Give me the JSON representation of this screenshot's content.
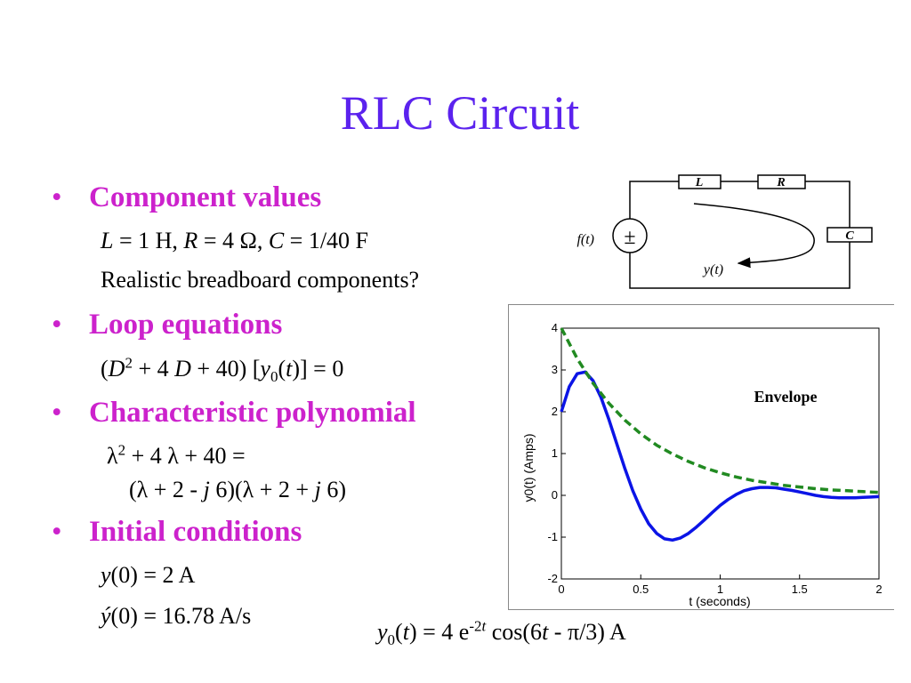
{
  "slide": {
    "title": "RLC Circuit",
    "bullets": [
      {
        "heading": "Component values"
      },
      {
        "heading": "Loop equations"
      },
      {
        "heading": "Characteristic polynomial"
      },
      {
        "heading": "Initial conditions"
      }
    ],
    "component_note": "Realistic breadboard components?",
    "components": {
      "L": "1 H",
      "R": "4 Ω",
      "C": "1/40 F"
    },
    "initial_conditions": {
      "y0": "2 A",
      "dy0": "16.78 A/s"
    },
    "bullet_glyph": "•"
  },
  "circuit": {
    "labels": {
      "L": "L",
      "R": "R",
      "C": "C",
      "source_symbol": "±",
      "input": "f(t)",
      "output": "y(t)"
    }
  },
  "chart_data": {
    "type": "line",
    "xlabel": "t (seconds)",
    "ylabel": "y0(t) (Amps)",
    "xlim": [
      0,
      2
    ],
    "ylim": [
      -2,
      4
    ],
    "xticks": [
      "0",
      "0.5",
      "1",
      "1.5",
      "2"
    ],
    "yticks": [
      "-2",
      "-1",
      "0",
      "1",
      "2",
      "3",
      "4"
    ],
    "annotation": "Envelope",
    "series": [
      {
        "color": "#0b14e6",
        "style": "solid",
        "x": [
          0,
          0.05,
          0.1,
          0.15,
          0.2,
          0.25,
          0.3,
          0.35,
          0.4,
          0.45,
          0.5,
          0.55,
          0.6,
          0.65,
          0.7,
          0.75,
          0.8,
          0.85,
          0.9,
          0.95,
          1.0,
          1.05,
          1.1,
          1.15,
          1.2,
          1.25,
          1.3,
          1.35,
          1.4,
          1.45,
          1.5,
          1.55,
          1.6,
          1.65,
          1.7,
          1.75,
          1.8,
          1.85,
          1.9,
          1.95,
          2.0
        ],
        "values": [
          2.0,
          2.6,
          2.91,
          2.95,
          2.74,
          2.34,
          1.81,
          1.22,
          0.64,
          0.11,
          -0.33,
          -0.68,
          -0.91,
          -1.04,
          -1.07,
          -1.02,
          -0.91,
          -0.76,
          -0.59,
          -0.41,
          -0.24,
          -0.1,
          0.02,
          0.11,
          0.16,
          0.19,
          0.19,
          0.18,
          0.15,
          0.12,
          0.08,
          0.04,
          0.0,
          -0.03,
          -0.05,
          -0.06,
          -0.06,
          -0.06,
          -0.05,
          -0.04,
          -0.03
        ]
      },
      {
        "color": "#218a21",
        "style": "dashed",
        "x": [
          0,
          0.1,
          0.2,
          0.3,
          0.4,
          0.5,
          0.6,
          0.7,
          0.8,
          0.9,
          1.0,
          1.1,
          1.2,
          1.3,
          1.4,
          1.5,
          1.6,
          1.7,
          1.8,
          1.9,
          2.0
        ],
        "values": [
          4.0,
          3.27,
          2.68,
          2.2,
          1.8,
          1.47,
          1.2,
          0.99,
          0.81,
          0.66,
          0.54,
          0.44,
          0.36,
          0.3,
          0.24,
          0.2,
          0.16,
          0.13,
          0.11,
          0.09,
          0.07
        ]
      }
    ]
  }
}
